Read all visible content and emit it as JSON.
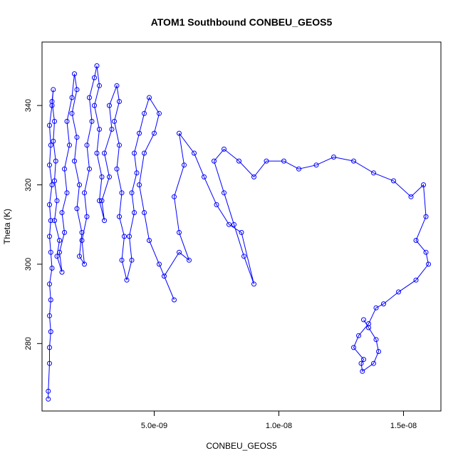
{
  "chart_data": {
    "type": "line",
    "title": "ATOM1 Southbound CONBEU_GEOS5",
    "xlabel": "CONBEU_GEOS5",
    "ylabel": "Theta (K)",
    "xlim": [
      5e-10,
      1.65e-08
    ],
    "ylim": [
      263,
      356
    ],
    "x_ticks": [
      5e-09,
      1e-08,
      1.5e-08
    ],
    "x_tick_labels": [
      "5.0e-09",
      "1.0e-08",
      "1.5e-08"
    ],
    "y_ticks": [
      280,
      300,
      320,
      340
    ],
    "y_tick_labels": [
      "280",
      "300",
      "320",
      "340"
    ],
    "grid": false,
    "colors": {
      "series": "#0000ff",
      "axis": "#000000"
    },
    "marker": "open-circle",
    "series": [
      {
        "points": [
          [
            7.5e-10,
            266
          ],
          [
            7.5e-10,
            268
          ],
          [
            8e-10,
            275
          ],
          [
            8e-10,
            279
          ],
          [
            8.5e-10,
            283
          ],
          [
            8e-10,
            287
          ],
          [
            8.5e-10,
            291
          ],
          [
            8e-10,
            295
          ],
          [
            9e-10,
            299
          ],
          [
            8.5e-10,
            303
          ],
          [
            8e-10,
            307
          ],
          [
            8.5e-10,
            311
          ],
          [
            8e-10,
            315
          ],
          [
            9e-10,
            320
          ],
          [
            8e-10,
            325
          ],
          [
            8.5e-10,
            330
          ],
          [
            8e-10,
            335
          ],
          [
            9e-10,
            340
          ],
          [
            9.5e-10,
            344
          ],
          [
            9e-10,
            341
          ],
          [
            1e-09,
            336
          ],
          [
            9.5e-10,
            331
          ],
          [
            1.05e-09,
            326
          ],
          [
            1e-09,
            321
          ],
          [
            1.1e-09,
            316
          ],
          [
            1e-09,
            311
          ],
          [
            1.2e-09,
            306
          ],
          [
            1.1e-09,
            302
          ],
          [
            1.3e-09,
            298
          ],
          [
            1.2e-09,
            303
          ],
          [
            1.4e-09,
            308
          ],
          [
            1.3e-09,
            313
          ],
          [
            1.5e-09,
            318
          ],
          [
            1.4e-09,
            324
          ],
          [
            1.6e-09,
            330
          ],
          [
            1.5e-09,
            336
          ],
          [
            1.7e-09,
            342
          ],
          [
            1.8e-09,
            348
          ],
          [
            1.9e-09,
            344
          ],
          [
            1.7e-09,
            338
          ],
          [
            1.9e-09,
            332
          ],
          [
            1.8e-09,
            326
          ],
          [
            2e-09,
            320
          ],
          [
            1.9e-09,
            314
          ],
          [
            2.1e-09,
            308
          ],
          [
            2e-09,
            302
          ],
          [
            2.2e-09,
            300
          ],
          [
            2.1e-09,
            306
          ],
          [
            2.3e-09,
            312
          ],
          [
            2.2e-09,
            318
          ],
          [
            2.4e-09,
            324
          ],
          [
            2.3e-09,
            330
          ],
          [
            2.5e-09,
            336
          ],
          [
            2.4e-09,
            342
          ],
          [
            2.6e-09,
            347
          ],
          [
            2.7e-09,
            350
          ],
          [
            2.8e-09,
            345
          ],
          [
            2.6e-09,
            340
          ],
          [
            2.8e-09,
            334
          ],
          [
            2.7e-09,
            328
          ],
          [
            2.9e-09,
            322
          ],
          [
            2.8e-09,
            316
          ],
          [
            3e-09,
            311
          ],
          [
            2.9e-09,
            316
          ],
          [
            3.2e-09,
            322
          ],
          [
            3e-09,
            328
          ],
          [
            3.3e-09,
            334
          ],
          [
            3.2e-09,
            340
          ],
          [
            3.5e-09,
            345
          ],
          [
            3.6e-09,
            341
          ],
          [
            3.4e-09,
            336
          ],
          [
            3.6e-09,
            330
          ],
          [
            3.5e-09,
            324
          ],
          [
            3.7e-09,
            318
          ],
          [
            3.6e-09,
            312
          ],
          [
            3.8e-09,
            307
          ],
          [
            3.7e-09,
            301
          ],
          [
            3.9e-09,
            296
          ],
          [
            4.1e-09,
            301
          ],
          [
            4e-09,
            307
          ],
          [
            4.2e-09,
            313
          ],
          [
            4.1e-09,
            318
          ],
          [
            4.3e-09,
            323
          ],
          [
            4.2e-09,
            328
          ],
          [
            4.4e-09,
            333
          ],
          [
            4.6e-09,
            338
          ],
          [
            4.8e-09,
            342
          ],
          [
            5.2e-09,
            338
          ],
          [
            5e-09,
            333
          ],
          [
            4.6e-09,
            328
          ],
          [
            4.4e-09,
            320
          ],
          [
            4.6e-09,
            313
          ],
          [
            4.8e-09,
            306
          ],
          [
            5.2e-09,
            300
          ],
          [
            5.8e-09,
            291
          ],
          [
            5.4e-09,
            297
          ],
          [
            6e-09,
            303
          ],
          [
            6.4e-09,
            301
          ],
          [
            6e-09,
            308
          ],
          [
            5.8e-09,
            317
          ],
          [
            6.2e-09,
            325
          ],
          [
            6e-09,
            333
          ],
          [
            6.6e-09,
            328
          ],
          [
            7e-09,
            322
          ],
          [
            7.5e-09,
            315
          ],
          [
            8e-09,
            310
          ],
          [
            8.5e-09,
            308
          ],
          [
            9e-09,
            295
          ],
          [
            8.6e-09,
            302
          ],
          [
            8.2e-09,
            310
          ],
          [
            7.8e-09,
            318
          ],
          [
            7.4e-09,
            326
          ],
          [
            7.8e-09,
            329
          ],
          [
            8.4e-09,
            326
          ],
          [
            9e-09,
            322
          ],
          [
            9.5e-09,
            326
          ],
          [
            1.02e-08,
            326
          ],
          [
            1.08e-08,
            324
          ],
          [
            1.15e-08,
            325
          ],
          [
            1.22e-08,
            327
          ],
          [
            1.3e-08,
            326
          ],
          [
            1.38e-08,
            323
          ],
          [
            1.46e-08,
            321
          ],
          [
            1.53e-08,
            317
          ],
          [
            1.58e-08,
            320
          ],
          [
            1.59e-08,
            312
          ],
          [
            1.55e-08,
            306
          ],
          [
            1.59e-08,
            303
          ],
          [
            1.6e-08,
            300
          ],
          [
            1.55e-08,
            296
          ],
          [
            1.48e-08,
            293
          ],
          [
            1.42e-08,
            290
          ],
          [
            1.39e-08,
            289
          ],
          [
            1.36e-08,
            285
          ],
          [
            1.32e-08,
            282
          ],
          [
            1.3e-08,
            279
          ],
          [
            1.34e-08,
            276
          ],
          [
            1.33e-08,
            275
          ],
          [
            1.335e-08,
            273
          ],
          [
            1.38e-08,
            275
          ],
          [
            1.4e-08,
            278
          ],
          [
            1.39e-08,
            281
          ],
          [
            1.36e-08,
            284
          ],
          [
            1.34e-08,
            286
          ]
        ]
      }
    ]
  }
}
